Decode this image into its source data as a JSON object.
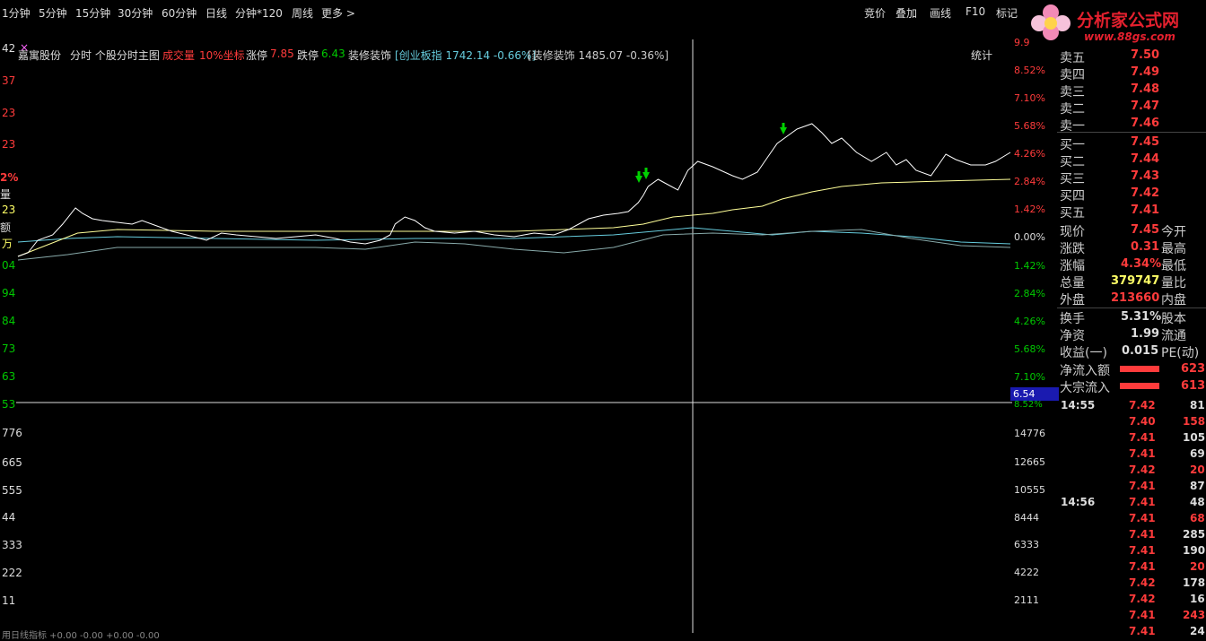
{
  "toolbar": {
    "timeframes": [
      "1分钟",
      "5分钟",
      "15分钟",
      "30分钟",
      "60分钟",
      "日线",
      "分钟*120",
      "周线",
      "更多 >"
    ],
    "right_buttons": [
      "竞价",
      "叠加",
      "画线",
      "F10",
      "标记"
    ],
    "stats_label": "统计"
  },
  "logo": {
    "title": "分析家公式网",
    "url": "www.88gs.com"
  },
  "title_bar": {
    "stock_name": "嘉寓股份",
    "chart_name": "分时 个股分时主图",
    "volume_label": "成交量",
    "coord_label": "10%坐标",
    "limit_up_label": "涨停",
    "limit_up_value": "7.85",
    "limit_down_label": "跌停",
    "limit_down_value": "6.43",
    "sector_name": "装修装饰",
    "index_info": "[创业板指 1742.14 -0.66%]",
    "sector_info": "[装修装饰 1485.07 -0.36%]"
  },
  "left_axis": {
    "price_labels": [
      "42",
      "37",
      "23",
      "23",
      "2%",
      "量",
      "23",
      "额",
      "万",
      "04",
      "94",
      "84",
      "73",
      "63",
      "53"
    ],
    "volume_labels": [
      "776",
      "665",
      "555",
      "44",
      "333",
      "222",
      "11"
    ],
    "bottom_text": "用日线指标 +0.00 -0.00 +0.00 -0.00"
  },
  "right_axis": {
    "pct_labels": [
      "9.9",
      "8.52%",
      "7.10%",
      "5.68%",
      "4.26%",
      "2.84%",
      "1.42%",
      "0.00%",
      "1.42%",
      "2.84%",
      "4.26%",
      "5.68%",
      "7.10%",
      "8.52%"
    ],
    "cursor_value": "6.54",
    "volume_labels": [
      "14776",
      "12665",
      "10555",
      "8444",
      "6333",
      "4222",
      "2111"
    ]
  },
  "order_book": [
    {
      "label": "卖五",
      "price": "7.50"
    },
    {
      "label": "卖四",
      "price": "7.49"
    },
    {
      "label": "卖三",
      "price": "7.48"
    },
    {
      "label": "卖二",
      "price": "7.47"
    },
    {
      "label": "卖一",
      "price": "7.46"
    },
    {
      "label": "买一",
      "price": "7.45"
    },
    {
      "label": "买二",
      "price": "7.44"
    },
    {
      "label": "买三",
      "price": "7.43"
    },
    {
      "label": "买四",
      "price": "7.42"
    },
    {
      "label": "买五",
      "price": "7.41"
    }
  ],
  "quote": [
    {
      "label": "现价",
      "value": "7.45",
      "extra": "今开"
    },
    {
      "label": "涨跌",
      "value": "0.31",
      "extra": "最高"
    },
    {
      "label": "涨幅",
      "value": "4.34%",
      "extra": "最低"
    },
    {
      "label": "总量",
      "value": "379747",
      "extra": "量比"
    },
    {
      "label": "外盘",
      "value": "213660",
      "extra": "内盘"
    },
    {
      "label": "换手",
      "value": "5.31%",
      "extra": "股本"
    },
    {
      "label": "净资",
      "value": "1.99",
      "extra": "流通"
    },
    {
      "label": "收益(一)",
      "value": "0.015",
      "extra": "PE(动)"
    }
  ],
  "flow": [
    {
      "label": "净流入额",
      "value": "623"
    },
    {
      "label": "大宗流入",
      "value": "613"
    }
  ],
  "ticks": [
    {
      "time": "14:55",
      "price": "7.42",
      "vol": "81"
    },
    {
      "time": "",
      "price": "7.40",
      "vol": "158"
    },
    {
      "time": "",
      "price": "7.41",
      "vol": "105"
    },
    {
      "time": "",
      "price": "7.41",
      "vol": "69"
    },
    {
      "time": "",
      "price": "7.42",
      "vol": "20"
    },
    {
      "time": "",
      "price": "7.41",
      "vol": "87"
    },
    {
      "time": "14:56",
      "price": "7.41",
      "vol": "48"
    },
    {
      "time": "",
      "price": "7.41",
      "vol": "68"
    },
    {
      "time": "",
      "price": "7.41",
      "vol": "285"
    },
    {
      "time": "",
      "price": "7.41",
      "vol": "190"
    },
    {
      "time": "",
      "price": "7.41",
      "vol": "20"
    },
    {
      "time": "",
      "price": "7.42",
      "vol": "178"
    },
    {
      "time": "",
      "price": "7.42",
      "vol": "16"
    },
    {
      "time": "",
      "price": "7.41",
      "vol": "243"
    },
    {
      "time": "",
      "price": "7.41",
      "vol": "24"
    }
  ],
  "colors": {
    "up": "#ff3b3b",
    "down": "#00c800",
    "price_line": "#ffffff",
    "avg_line": "#ffff99",
    "cyan_line": "#66ccdd",
    "grey": "#cccccc",
    "cursor_bg": "#1a1ab0"
  }
}
